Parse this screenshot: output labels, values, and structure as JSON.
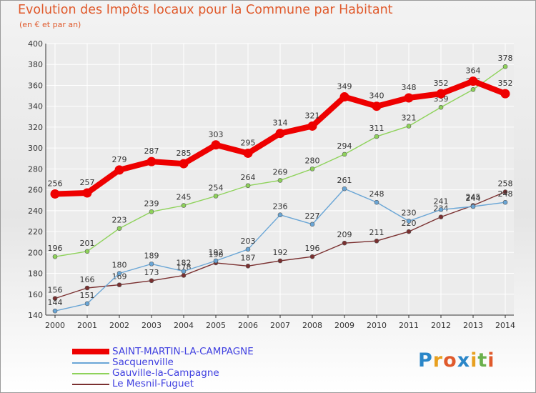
{
  "header": {
    "title": "Evolution des Impôts locaux pour la Commune par Habitant",
    "subtitle": "(en € et par an)"
  },
  "colors": {
    "title": "#e05a2c",
    "legend_text": "#4040e0",
    "axis": "#333333",
    "grid": "#ffffff",
    "label": "#333333"
  },
  "logo": {
    "letters": [
      "P",
      "r",
      "o",
      "x",
      "i",
      "t",
      "i"
    ],
    "colors": [
      "#2a86c8",
      "#e8a020",
      "#e05a2c",
      "#2a86c8",
      "#e8a020",
      "#6ab04c",
      "#e05a2c"
    ]
  },
  "chart_data": {
    "type": "line",
    "title": "Evolution des Impôts locaux pour la Commune par Habitant",
    "subtitle": "(en € et par an)",
    "xlabel": "",
    "ylabel": "",
    "categories": [
      "2000",
      "2001",
      "2002",
      "2003",
      "2004",
      "2005",
      "2006",
      "2007",
      "2008",
      "2009",
      "2010",
      "2011",
      "2012",
      "2013",
      "2014"
    ],
    "ylim": [
      140,
      400
    ],
    "yticks": [
      140,
      160,
      180,
      200,
      220,
      240,
      260,
      280,
      300,
      320,
      340,
      360,
      380,
      400
    ],
    "grid": true,
    "legend_position": "bottom-left",
    "series": [
      {
        "name": "SAINT-MARTIN-LA-CAMPAGNE",
        "color": "#ee0000",
        "emphasis": true,
        "values": [
          256,
          257,
          279,
          287,
          285,
          303,
          295,
          314,
          321,
          349,
          340,
          348,
          352,
          364,
          352
        ]
      },
      {
        "name": "Sacquenville",
        "color": "#6aa6d6",
        "values": [
          144,
          151,
          180,
          189,
          182,
          192,
          203,
          236,
          227,
          261,
          248,
          230,
          241,
          244,
          248
        ]
      },
      {
        "name": "Gauville-la-Campagne",
        "color": "#8ed25a",
        "values": [
          196,
          201,
          223,
          239,
          245,
          254,
          264,
          269,
          280,
          294,
          311,
          321,
          339,
          356,
          378
        ]
      },
      {
        "name": "Le Mesnil-Fuguet",
        "color": "#7a3030",
        "values": [
          156,
          166,
          169,
          173,
          178,
          190,
          187,
          192,
          196,
          209,
          211,
          220,
          234,
          245,
          258
        ]
      }
    ]
  }
}
